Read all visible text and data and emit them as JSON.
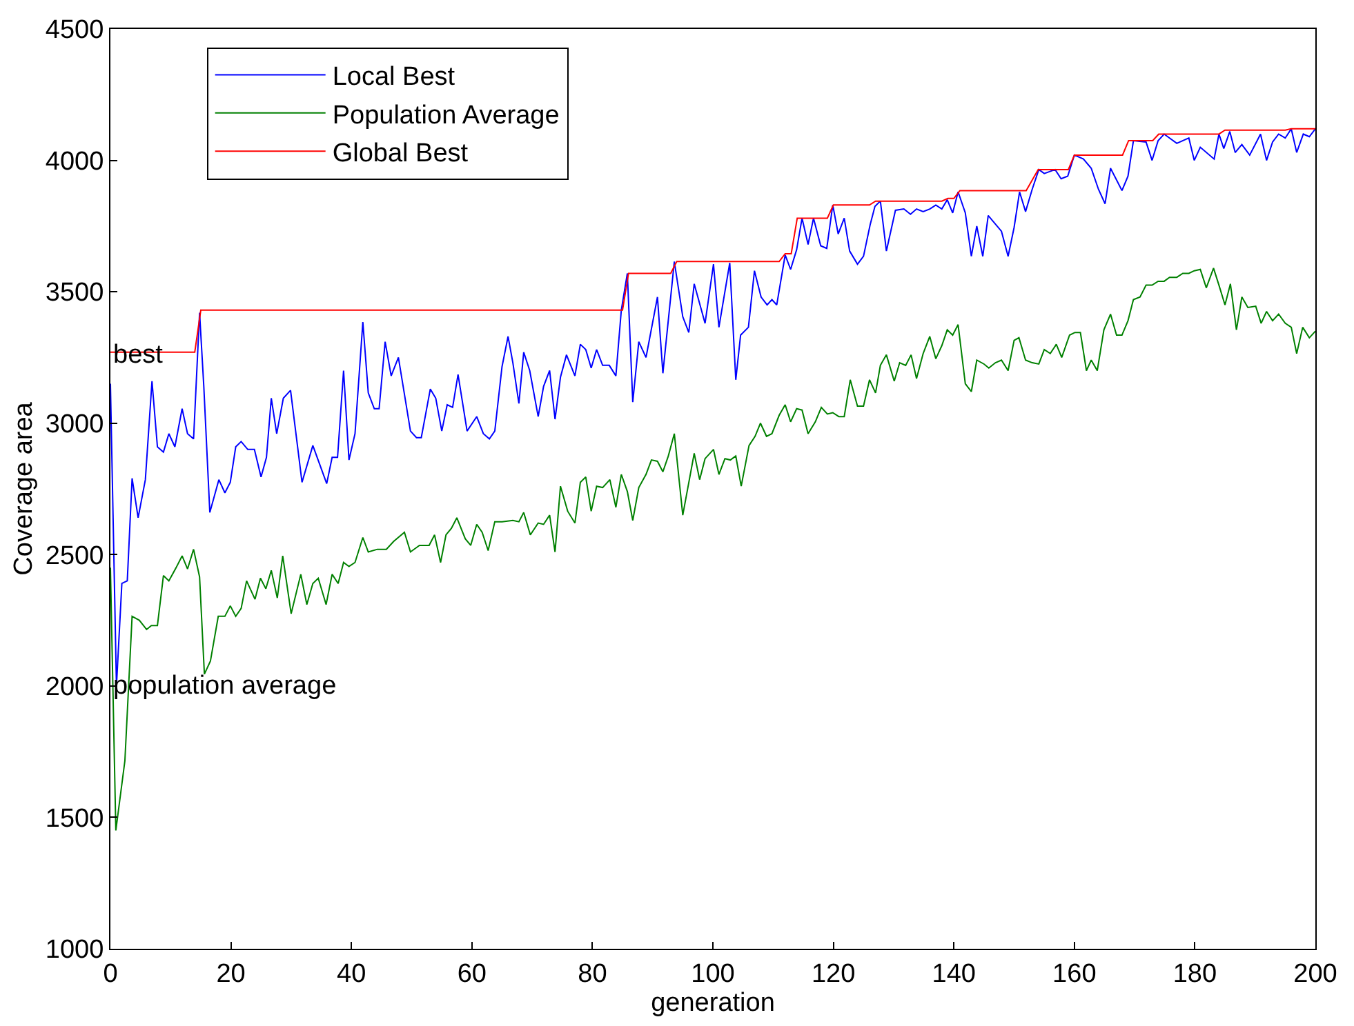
{
  "chart_data": {
    "type": "line",
    "xlabel": "generation",
    "ylabel": "Coverage area",
    "xlim": [
      0,
      200
    ],
    "xticks": [
      0,
      20,
      40,
      60,
      80,
      100,
      120,
      140,
      160,
      180,
      200
    ],
    "ylim": [
      1000,
      4500
    ],
    "yticks": [
      1000,
      1500,
      2000,
      2500,
      3000,
      3500,
      4000,
      4500
    ],
    "legend": "top left",
    "marker": "none",
    "line_style": "solid",
    "annotations": [
      {
        "text": "best",
        "x": 0,
        "y": 3260
      },
      {
        "text": "population average",
        "x": 0,
        "y": 2000
      }
    ],
    "series": [
      {
        "name": "Local Best",
        "color": "#0000ff",
        "x": [
          0,
          1,
          1.9,
          2.8,
          3.6,
          4.6,
          5.8,
          6.9,
          7.8,
          8.8,
          9.7,
          10.7,
          11.9,
          12.8,
          13.8,
          14.8,
          15.5,
          16.5,
          18,
          19,
          19.9,
          20.8,
          21.7,
          22.8,
          23.9,
          25,
          25.9,
          26.7,
          27.6,
          28.7,
          29.9,
          31.8,
          33.6,
          35.9,
          36.8,
          37.7,
          38.7,
          39.6,
          40.6,
          41.9,
          42.8,
          43.8,
          44.6,
          45.6,
          46.6,
          47.8,
          49.8,
          50.8,
          51.6,
          53.1,
          54,
          55,
          55.9,
          56.8,
          57.7,
          59.2,
          60.8,
          61.9,
          62.9,
          63.8,
          65,
          66,
          66.8,
          67.8,
          68.6,
          69.6,
          71,
          71.9,
          72.9,
          73.8,
          74.7,
          75.7,
          77.1,
          78,
          78.9,
          79.8,
          80.7,
          81.7,
          82.8,
          83.9,
          84.8,
          85.8,
          86.7,
          87.7,
          88.9,
          90.8,
          91.7,
          93.6,
          95,
          96,
          96.9,
          98.7,
          100.1,
          101,
          102.8,
          103.8,
          104.6,
          105.9,
          106.9,
          108,
          109,
          109.8,
          110.6,
          112,
          112.9,
          113.9,
          114.8,
          115.8,
          116.7,
          117.9,
          118.9,
          119.9,
          120.8,
          121.8,
          122.7,
          124,
          125,
          126.1,
          126.9,
          127.8,
          128.8,
          130.3,
          131.7,
          132.8,
          133.8,
          134.9,
          136,
          137,
          138,
          138.9,
          139.8,
          140.7,
          141.9,
          142.9,
          143.8,
          144.8,
          145.7,
          147.9,
          149,
          150,
          150.9,
          151.9,
          153,
          154.1,
          155,
          156.8,
          157.8,
          158.9,
          160,
          161.5,
          162.8,
          164,
          165.1,
          166,
          166.9,
          167.9,
          168.9,
          169.8,
          171.9,
          172.9,
          173.9,
          174.9,
          177,
          179,
          179.9,
          180.9,
          183.2,
          184,
          184.8,
          185.8,
          186.7,
          187.8,
          189.1,
          190.9,
          191.9,
          192.9,
          193.9,
          195,
          196,
          196.9,
          198,
          199,
          200
        ],
        "values": [
          3150,
          2000,
          2390,
          2400,
          2790,
          2640,
          2785,
          3160,
          2910,
          2890,
          2960,
          2910,
          3055,
          2960,
          2940,
          3420,
          3140,
          2660,
          2785,
          2735,
          2775,
          2910,
          2930,
          2900,
          2900,
          2795,
          2870,
          3095,
          2960,
          3095,
          3125,
          2775,
          2915,
          2770,
          2870,
          2870,
          3200,
          2860,
          2960,
          3385,
          3115,
          3055,
          3055,
          3310,
          3180,
          3250,
          2970,
          2945,
          2945,
          3130,
          3095,
          2970,
          3070,
          3060,
          3185,
          2970,
          3025,
          2960,
          2940,
          2970,
          3215,
          3330,
          3230,
          3075,
          3270,
          3200,
          3025,
          3140,
          3200,
          3015,
          3175,
          3260,
          3180,
          3300,
          3280,
          3210,
          3280,
          3220,
          3220,
          3180,
          3430,
          3570,
          3080,
          3310,
          3250,
          3480,
          3190,
          3615,
          3405,
          3345,
          3530,
          3380,
          3605,
          3365,
          3610,
          3165,
          3335,
          3365,
          3580,
          3480,
          3450,
          3470,
          3450,
          3640,
          3585,
          3660,
          3780,
          3680,
          3780,
          3675,
          3665,
          3830,
          3720,
          3780,
          3655,
          3605,
          3635,
          3755,
          3825,
          3845,
          3655,
          3810,
          3815,
          3795,
          3815,
          3805,
          3815,
          3830,
          3815,
          3850,
          3800,
          3880,
          3800,
          3635,
          3750,
          3635,
          3790,
          3730,
          3635,
          3745,
          3880,
          3805,
          3890,
          3965,
          3950,
          3965,
          3930,
          3940,
          4020,
          4005,
          3970,
          3890,
          3835,
          3970,
          3930,
          3885,
          3940,
          4075,
          4070,
          4000,
          4075,
          4100,
          4065,
          4085,
          4000,
          4050,
          4005,
          4100,
          4045,
          4110,
          4030,
          4060,
          4020,
          4100,
          4000,
          4070,
          4100,
          4085,
          4120,
          4030,
          4100,
          4090,
          4120
        ]
      },
      {
        "name": "Population Average",
        "color": "#008000",
        "x": [
          0,
          0.9,
          2.4,
          3.6,
          4.8,
          6,
          6.8,
          7.8,
          8.8,
          9.7,
          10.9,
          11.9,
          12.8,
          13.8,
          14.8,
          15.6,
          16.6,
          17.9,
          19,
          19.9,
          20.8,
          21.7,
          22.6,
          24,
          24.9,
          25.8,
          26.7,
          27.7,
          28.6,
          30,
          31.6,
          32.6,
          33.6,
          34.5,
          35.8,
          36.8,
          37.8,
          38.7,
          39.6,
          40.6,
          41.9,
          42.8,
          44.3,
          45.8,
          47,
          48.8,
          49.8,
          51.3,
          52.9,
          53.8,
          54.8,
          55.7,
          56.6,
          57.5,
          58.9,
          59.8,
          60.8,
          61.7,
          62.7,
          63.8,
          65,
          66.8,
          67.8,
          68.6,
          69.7,
          71,
          71.9,
          72.9,
          73.8,
          74.7,
          75.9,
          77.1,
          78,
          78.9,
          79.8,
          80.7,
          81.7,
          82.9,
          83.9,
          84.8,
          85.8,
          86.7,
          87.7,
          88.9,
          89.8,
          90.8,
          91.7,
          92.6,
          93.6,
          95,
          96.9,
          97.8,
          98.7,
          100.1,
          101,
          102,
          102.9,
          103.8,
          104.7,
          106,
          107,
          107.9,
          108.9,
          109.8,
          111,
          112,
          112.9,
          113.9,
          114.8,
          115.8,
          117,
          118,
          119,
          119.9,
          120.9,
          121.8,
          122.8,
          124,
          125,
          126,
          127,
          127.8,
          128.8,
          130.1,
          131,
          132,
          132.9,
          133.8,
          134.9,
          136,
          137,
          138,
          138.9,
          139.8,
          140.7,
          141.9,
          142.9,
          143.8,
          145,
          145.8,
          146.9,
          147.9,
          149,
          150,
          150.8,
          151.9,
          153,
          154.1,
          155,
          156,
          157,
          157.9,
          159.2,
          160.1,
          161,
          162,
          162.8,
          163.8,
          164.9,
          166,
          167,
          167.9,
          168.9,
          169.8,
          170.9,
          171.9,
          172.9,
          173.9,
          174.9,
          175.8,
          177,
          178,
          179,
          179.9,
          180.9,
          181.9,
          183.1,
          184,
          185,
          185.9,
          186.9,
          187.8,
          188.8,
          190.1,
          191,
          191.9,
          192.9,
          193.9,
          195,
          196,
          196.9,
          197.9,
          199,
          200
        ],
        "values": [
          2450,
          1450,
          1715,
          2265,
          2250,
          2215,
          2230,
          2230,
          2420,
          2400,
          2450,
          2495,
          2445,
          2520,
          2415,
          2045,
          2095,
          2265,
          2265,
          2305,
          2265,
          2295,
          2400,
          2330,
          2410,
          2370,
          2440,
          2335,
          2495,
          2275,
          2425,
          2310,
          2390,
          2410,
          2310,
          2425,
          2390,
          2470,
          2455,
          2470,
          2565,
          2510,
          2520,
          2520,
          2550,
          2585,
          2510,
          2535,
          2535,
          2575,
          2470,
          2575,
          2600,
          2640,
          2560,
          2535,
          2615,
          2585,
          2515,
          2625,
          2625,
          2630,
          2625,
          2660,
          2575,
          2620,
          2615,
          2650,
          2510,
          2760,
          2665,
          2620,
          2775,
          2795,
          2665,
          2760,
          2755,
          2785,
          2680,
          2805,
          2740,
          2630,
          2755,
          2805,
          2860,
          2855,
          2815,
          2875,
          2960,
          2650,
          2885,
          2785,
          2865,
          2900,
          2805,
          2865,
          2860,
          2875,
          2760,
          2915,
          2950,
          3000,
          2950,
          2960,
          3030,
          3070,
          3005,
          3055,
          3050,
          2960,
          3005,
          3060,
          3035,
          3040,
          3025,
          3025,
          3165,
          3065,
          3065,
          3165,
          3115,
          3220,
          3260,
          3160,
          3230,
          3220,
          3260,
          3170,
          3265,
          3330,
          3245,
          3295,
          3355,
          3335,
          3375,
          3150,
          3120,
          3240,
          3225,
          3210,
          3230,
          3240,
          3200,
          3315,
          3325,
          3240,
          3230,
          3225,
          3280,
          3265,
          3300,
          3250,
          3335,
          3345,
          3345,
          3200,
          3240,
          3200,
          3355,
          3415,
          3335,
          3335,
          3390,
          3470,
          3480,
          3525,
          3525,
          3540,
          3540,
          3555,
          3555,
          3570,
          3570,
          3580,
          3585,
          3515,
          3590,
          3525,
          3450,
          3530,
          3355,
          3480,
          3440,
          3445,
          3380,
          3425,
          3390,
          3415,
          3380,
          3365,
          3265,
          3365,
          3325,
          3350
        ]
      },
      {
        "name": "Global Best",
        "color": "#ff0000",
        "x": [
          0,
          14,
          15,
          85,
          86,
          93,
          94,
          111,
          112,
          113,
          114,
          119,
          120,
          126,
          127,
          138,
          139,
          140,
          141,
          152,
          154,
          159,
          160,
          168,
          169,
          173,
          174,
          184,
          185,
          195,
          196,
          200
        ],
        "values": [
          3270,
          3270,
          3430,
          3430,
          3570,
          3570,
          3615,
          3615,
          3645,
          3645,
          3780,
          3780,
          3830,
          3830,
          3845,
          3845,
          3855,
          3855,
          3885,
          3885,
          3965,
          3965,
          4020,
          4020,
          4075,
          4075,
          4100,
          4100,
          4115,
          4115,
          4120,
          4120
        ]
      }
    ]
  }
}
